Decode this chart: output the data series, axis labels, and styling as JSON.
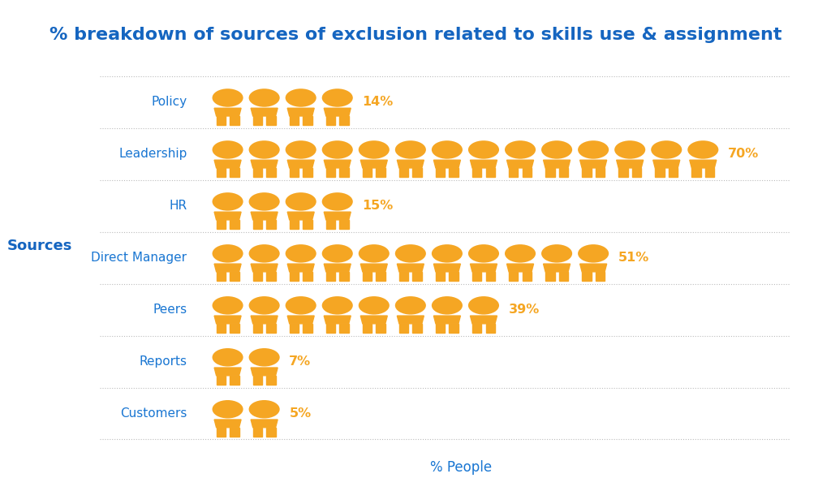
{
  "title": "% breakdown of sources of exclusion related to skills use & assignment",
  "categories": [
    "Policy",
    "Leadership",
    "HR",
    "Direct Manager",
    "Peers",
    "Reports",
    "Customers"
  ],
  "values": [
    14,
    70,
    15,
    51,
    39,
    7,
    5
  ],
  "num_icons": [
    4,
    14,
    4,
    11,
    8,
    2,
    2
  ],
  "xlabel": "% People",
  "ylabel": "Sources",
  "title_color": "#1565C0",
  "label_color": "#1976D2",
  "ylabel_color": "#1565C0",
  "xlabel_color": "#1976D2",
  "icon_color": "#F5A623",
  "pct_color": "#F5A623",
  "bg_color": "#FFFFFF",
  "grid_color": "#BBBBBB"
}
